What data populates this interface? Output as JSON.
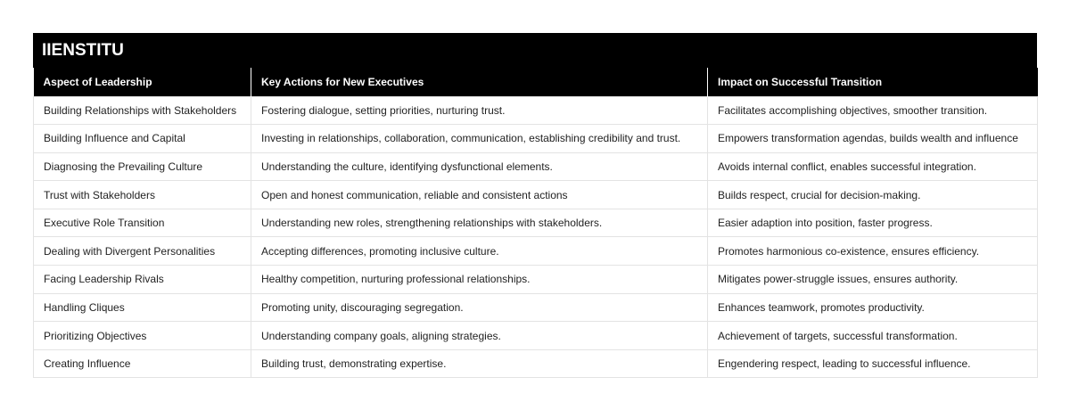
{
  "header": {
    "title": "IIENSTITU"
  },
  "table": {
    "columns": [
      "Aspect of Leadership",
      "Key Actions for New Executives",
      "Impact on Successful Transition"
    ],
    "rows": [
      [
        "Building Relationships with Stakeholders",
        "Fostering dialogue, setting priorities, nurturing trust.",
        "Facilitates accomplishing objectives, smoother transition."
      ],
      [
        "Building Influence and Capital",
        "Investing in relationships, collaboration, communication, establishing credibility and trust.",
        "Empowers transformation agendas, builds wealth and influence"
      ],
      [
        "Diagnosing the Prevailing Culture",
        "Understanding the culture, identifying dysfunctional elements.",
        "Avoids internal conflict, enables successful integration."
      ],
      [
        "Trust with Stakeholders",
        "Open and honest communication, reliable and consistent actions",
        "Builds respect, crucial for decision-making."
      ],
      [
        "Executive Role Transition",
        "Understanding new roles, strengthening relationships with stakeholders.",
        "Easier adaption into position, faster progress."
      ],
      [
        "Dealing with Divergent Personalities",
        "Accepting differences, promoting inclusive culture.",
        "Promotes harmonious co-existence, ensures efficiency."
      ],
      [
        "Facing Leadership Rivals",
        "Healthy competition, nurturing professional relationships.",
        "Mitigates power-struggle issues, ensures authority."
      ],
      [
        "Handling Cliques",
        "Promoting unity, discouraging segregation.",
        "Enhances teamwork, promotes productivity."
      ],
      [
        "Prioritizing Objectives",
        "Understanding company goals, aligning strategies.",
        "Achievement of targets, successful transformation."
      ],
      [
        "Creating Influence",
        "Building trust, demonstrating expertise.",
        "Engendering respect, leading to successful influence."
      ]
    ]
  }
}
